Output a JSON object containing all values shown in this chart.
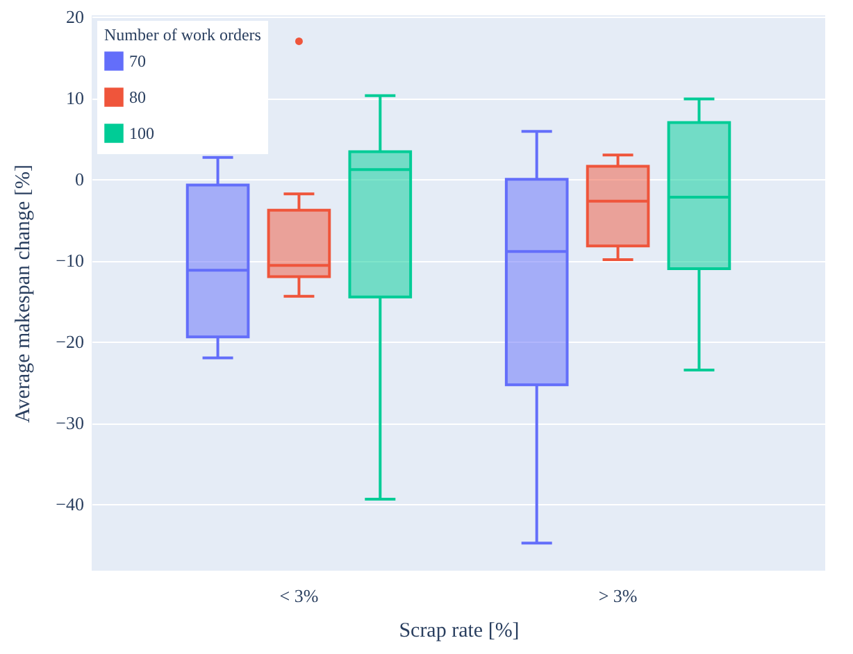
{
  "chart_data": {
    "type": "box",
    "xlabel": "Scrap rate [%]",
    "ylabel": "Average makespan change [%]",
    "legend_title": "Number of work orders",
    "categories": [
      "< 3%",
      "> 3%"
    ],
    "series": [
      {
        "name": "70",
        "color": "#636efa",
        "boxes": [
          {
            "low": -22.0,
            "q1": -19.4,
            "median": -11.2,
            "q3": -0.7,
            "high": 2.7
          },
          {
            "low": -44.8,
            "q1": -25.3,
            "median": -8.9,
            "q3": 0,
            "high": 5.9
          }
        ]
      },
      {
        "name": "80",
        "color": "#ef553b",
        "boxes": [
          {
            "low": -14.4,
            "q1": -12.0,
            "median": -10.6,
            "q3": -3.8,
            "high": -1.8,
            "outliers": [
              17.0
            ]
          },
          {
            "low": -9.9,
            "q1": -8.2,
            "median": -2.7,
            "q3": 1.6,
            "high": 3.0
          }
        ]
      },
      {
        "name": "100",
        "color": "#00cc96",
        "boxes": [
          {
            "low": -39.4,
            "q1": -14.5,
            "median": 1.2,
            "q3": 3.4,
            "high": 10.3
          },
          {
            "low": -23.5,
            "q1": -11.0,
            "median": -2.2,
            "q3": 7.0,
            "high": 9.9
          }
        ]
      }
    ],
    "ylim": [
      -48.2,
      20.2
    ],
    "yticks": [
      -40,
      -30,
      -20,
      -10,
      0,
      10,
      20
    ],
    "grid": "y",
    "legend": "top left"
  }
}
